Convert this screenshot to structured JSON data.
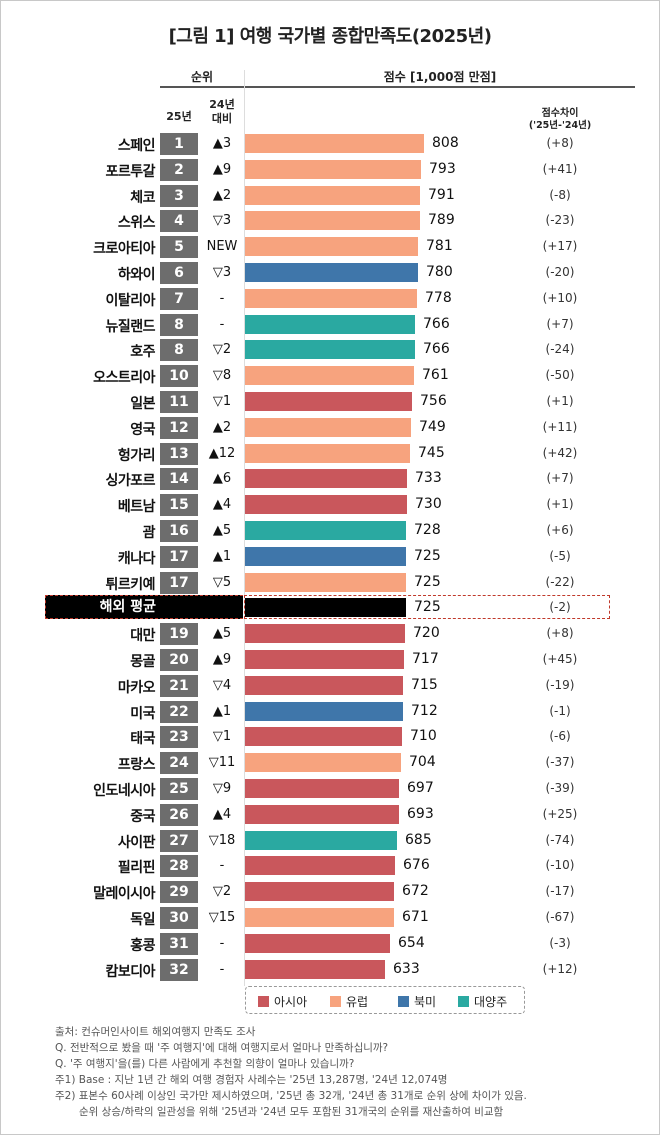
{
  "title": "[그림 1] 여행 국가별 종합만족도(2025년)",
  "headers": {
    "rank": "순위",
    "rank_25": "25년",
    "rank_24_line1": "24년",
    "rank_24_line2": "대비",
    "score": "점수 [1,000점 만점]",
    "diff_line1": "점수차이",
    "diff_line2": "('25년-'24년)"
  },
  "colors": {
    "아시아": "#c9575c",
    "유럽": "#f7a37e",
    "북미": "#3f76aa",
    "대양주": "#2aa9a1",
    "average": "#000000"
  },
  "chart_data": {
    "type": "bar",
    "orientation": "horizontal",
    "title": "[그림 1] 여행 국가별 종합만족도(2025년)",
    "xlim": [
      0,
      1000
    ],
    "rows": [
      {
        "country": "스페인",
        "rank": "1",
        "change": "▲3",
        "score": 808,
        "diff": "(+8)",
        "region": "유럽"
      },
      {
        "country": "포르투갈",
        "rank": "2",
        "change": "▲9",
        "score": 793,
        "diff": "(+41)",
        "region": "유럽"
      },
      {
        "country": "체코",
        "rank": "3",
        "change": "▲2",
        "score": 791,
        "diff": "(-8)",
        "region": "유럽"
      },
      {
        "country": "스위스",
        "rank": "4",
        "change": "▽3",
        "score": 789,
        "diff": "(-23)",
        "region": "유럽"
      },
      {
        "country": "크로아티아",
        "rank": "5",
        "change": "NEW",
        "score": 781,
        "diff": "(+17)",
        "region": "유럽"
      },
      {
        "country": "하와이",
        "rank": "6",
        "change": "▽3",
        "score": 780,
        "diff": "(-20)",
        "region": "북미"
      },
      {
        "country": "이탈리아",
        "rank": "7",
        "change": "-",
        "score": 778,
        "diff": "(+10)",
        "region": "유럽"
      },
      {
        "country": "뉴질랜드",
        "rank": "8",
        "change": "-",
        "score": 766,
        "diff": "(+7)",
        "region": "대양주"
      },
      {
        "country": "호주",
        "rank": "8",
        "change": "▽2",
        "score": 766,
        "diff": "(-24)",
        "region": "대양주"
      },
      {
        "country": "오스트리아",
        "rank": "10",
        "change": "▽8",
        "score": 761,
        "diff": "(-50)",
        "region": "유럽"
      },
      {
        "country": "일본",
        "rank": "11",
        "change": "▽1",
        "score": 756,
        "diff": "(+1)",
        "region": "아시아"
      },
      {
        "country": "영국",
        "rank": "12",
        "change": "▲2",
        "score": 749,
        "diff": "(+11)",
        "region": "유럽"
      },
      {
        "country": "헝가리",
        "rank": "13",
        "change": "▲12",
        "score": 745,
        "diff": "(+42)",
        "region": "유럽"
      },
      {
        "country": "싱가포르",
        "rank": "14",
        "change": "▲6",
        "score": 733,
        "diff": "(+7)",
        "region": "아시아"
      },
      {
        "country": "베트남",
        "rank": "15",
        "change": "▲4",
        "score": 730,
        "diff": "(+1)",
        "region": "아시아"
      },
      {
        "country": "괌",
        "rank": "16",
        "change": "▲5",
        "score": 728,
        "diff": "(+6)",
        "region": "대양주"
      },
      {
        "country": "캐나다",
        "rank": "17",
        "change": "▲1",
        "score": 725,
        "diff": "(-5)",
        "region": "북미"
      },
      {
        "country": "튀르키예",
        "rank": "17",
        "change": "▽5",
        "score": 725,
        "diff": "(-22)",
        "region": "유럽"
      },
      {
        "country": "해외 평균",
        "rank": "",
        "change": "",
        "score": 725,
        "diff": "(-2)",
        "region": "average"
      },
      {
        "country": "대만",
        "rank": "19",
        "change": "▲5",
        "score": 720,
        "diff": "(+8)",
        "region": "아시아"
      },
      {
        "country": "몽골",
        "rank": "20",
        "change": "▲9",
        "score": 717,
        "diff": "(+45)",
        "region": "아시아"
      },
      {
        "country": "마카오",
        "rank": "21",
        "change": "▽4",
        "score": 715,
        "diff": "(-19)",
        "region": "아시아"
      },
      {
        "country": "미국",
        "rank": "22",
        "change": "▲1",
        "score": 712,
        "diff": "(-1)",
        "region": "북미"
      },
      {
        "country": "태국",
        "rank": "23",
        "change": "▽1",
        "score": 710,
        "diff": "(-6)",
        "region": "아시아"
      },
      {
        "country": "프랑스",
        "rank": "24",
        "change": "▽11",
        "score": 704,
        "diff": "(-37)",
        "region": "유럽"
      },
      {
        "country": "인도네시아",
        "rank": "25",
        "change": "▽9",
        "score": 697,
        "diff": "(-39)",
        "region": "아시아"
      },
      {
        "country": "중국",
        "rank": "26",
        "change": "▲4",
        "score": 693,
        "diff": "(+25)",
        "region": "아시아"
      },
      {
        "country": "사이판",
        "rank": "27",
        "change": "▽18",
        "score": 685,
        "diff": "(-74)",
        "region": "대양주"
      },
      {
        "country": "필리핀",
        "rank": "28",
        "change": "-",
        "score": 676,
        "diff": "(-10)",
        "region": "아시아"
      },
      {
        "country": "말레이시아",
        "rank": "29",
        "change": "▽2",
        "score": 672,
        "diff": "(-17)",
        "region": "아시아"
      },
      {
        "country": "독일",
        "rank": "30",
        "change": "▽15",
        "score": 671,
        "diff": "(-67)",
        "region": "유럽"
      },
      {
        "country": "홍콩",
        "rank": "31",
        "change": "-",
        "score": 654,
        "diff": "(-3)",
        "region": "아시아"
      },
      {
        "country": "캄보디아",
        "rank": "32",
        "change": "-",
        "score": 633,
        "diff": "(+12)",
        "region": "아시아"
      }
    ],
    "legend": [
      "아시아",
      "유럽",
      "북미",
      "대양주"
    ]
  },
  "notes": [
    "출처: 컨슈머인사이트 해외여행지 만족도 조사",
    "Q. 전반적으로 봤을 때 '주 여행지'에 대해 여행지로서 얼마나 만족하십니까?",
    "Q. '주 여행지'을(를) 다른 사람에게 추천할 의향이 얼마나 있습니까?",
    "주1) Base : 지난 1년 간 해외 여행 경험자 사례수는 '25년 13,287명, '24년 12,074명",
    "주2) 표본수 60사례 이상인 국가만 제시하였으며, '25년 총 32개, '24년 총 31개로 순위 상에 차이가 있음.",
    "순위 상승/하락의 일관성을 위해 '25년과 '24년 모두 포함된 31개국의 순위를 재산출하여 비교함"
  ]
}
